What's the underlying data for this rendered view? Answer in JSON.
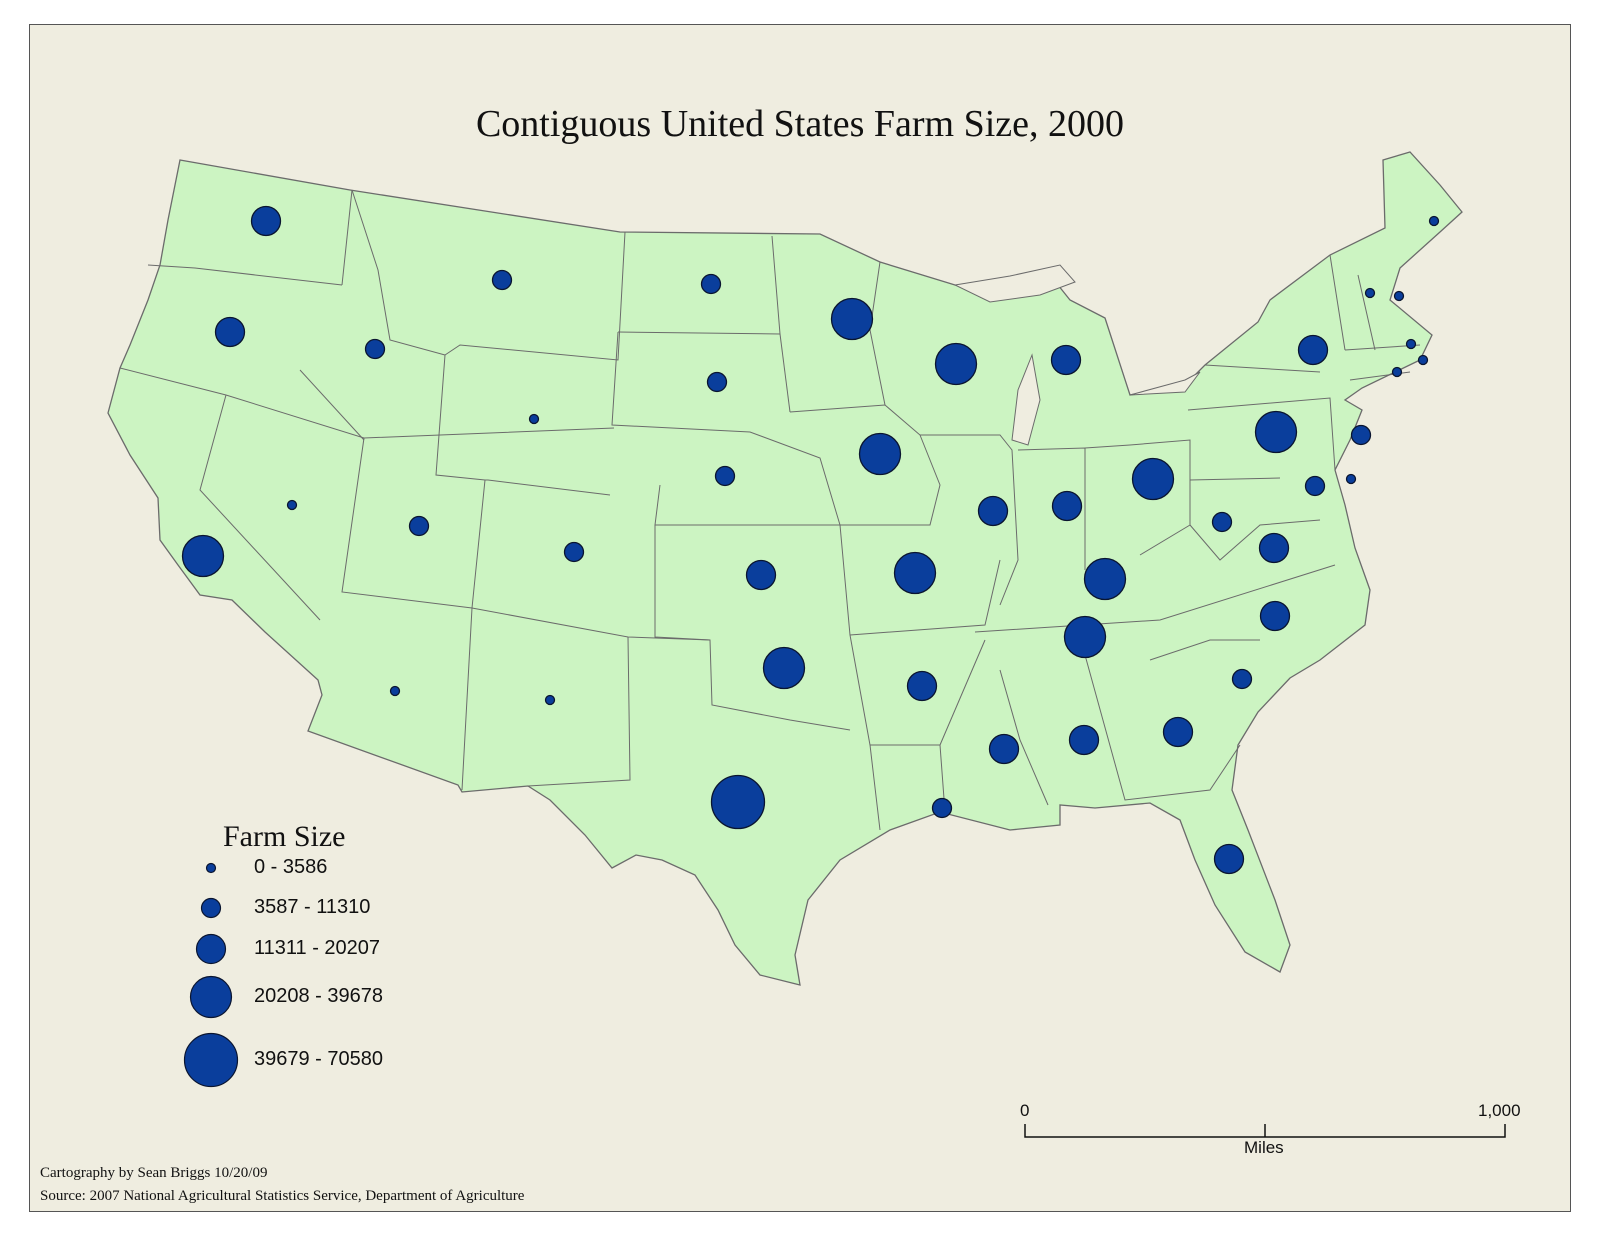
{
  "title": "Contiguous United States Farm Size, 2000",
  "colors": {
    "background": "#efede0",
    "land": "#ccf4c2",
    "border": "#6b6b6b",
    "symbol_fill": "#0a3e9c",
    "symbol_stroke": "#0a1530"
  },
  "legend": {
    "title": "Farm Size",
    "classes": [
      "0 - 3586",
      "3587 - 11310",
      "11311 - 20207",
      "20208 - 39678",
      "39679 - 70580"
    ]
  },
  "scale_bar": {
    "start": "0",
    "end": "1,000",
    "unit": "Miles"
  },
  "credits": {
    "author": "Cartography by Sean Briggs 10/20/09",
    "source": "Source: 2007 National Agricultural Statistics Service, Department of Agriculture"
  },
  "states": [
    {
      "name": "Washington",
      "class": 3
    },
    {
      "name": "Oregon",
      "class": 3
    },
    {
      "name": "California",
      "class": 4
    },
    {
      "name": "Idaho",
      "class": 2
    },
    {
      "name": "Nevada",
      "class": 1
    },
    {
      "name": "Montana",
      "class": 2
    },
    {
      "name": "Wyoming",
      "class": 1
    },
    {
      "name": "Utah",
      "class": 2
    },
    {
      "name": "Colorado",
      "class": 2
    },
    {
      "name": "Arizona",
      "class": 1
    },
    {
      "name": "New Mexico",
      "class": 1
    },
    {
      "name": "North Dakota",
      "class": 2
    },
    {
      "name": "South Dakota",
      "class": 2
    },
    {
      "name": "Nebraska",
      "class": 2
    },
    {
      "name": "Kansas",
      "class": 3
    },
    {
      "name": "Oklahoma",
      "class": 4
    },
    {
      "name": "Texas",
      "class": 5
    },
    {
      "name": "Minnesota",
      "class": 4
    },
    {
      "name": "Iowa",
      "class": 4
    },
    {
      "name": "Missouri",
      "class": 4
    },
    {
      "name": "Arkansas",
      "class": 3
    },
    {
      "name": "Louisiana",
      "class": 2
    },
    {
      "name": "Wisconsin",
      "class": 4
    },
    {
      "name": "Illinois",
      "class": 3
    },
    {
      "name": "Michigan",
      "class": 3
    },
    {
      "name": "Indiana",
      "class": 3
    },
    {
      "name": "Ohio",
      "class": 4
    },
    {
      "name": "Kentucky",
      "class": 4
    },
    {
      "name": "Tennessee",
      "class": 4
    },
    {
      "name": "Mississippi",
      "class": 3
    },
    {
      "name": "Alabama",
      "class": 3
    },
    {
      "name": "Georgia",
      "class": 3
    },
    {
      "name": "Florida",
      "class": 3
    },
    {
      "name": "South Carolina",
      "class": 2
    },
    {
      "name": "North Carolina",
      "class": 3
    },
    {
      "name": "Virginia",
      "class": 3
    },
    {
      "name": "West Virginia",
      "class": 2
    },
    {
      "name": "Pennsylvania",
      "class": 4
    },
    {
      "name": "New York",
      "class": 3
    },
    {
      "name": "New Jersey",
      "class": 2
    },
    {
      "name": "Delaware",
      "class": 1
    },
    {
      "name": "Maryland",
      "class": 2
    },
    {
      "name": "Connecticut",
      "class": 1
    },
    {
      "name": "Rhode Island",
      "class": 1
    },
    {
      "name": "Massachusetts",
      "class": 1
    },
    {
      "name": "Vermont",
      "class": 1
    },
    {
      "name": "New Hampshire",
      "class": 1
    },
    {
      "name": "Maine",
      "class": 1
    }
  ]
}
